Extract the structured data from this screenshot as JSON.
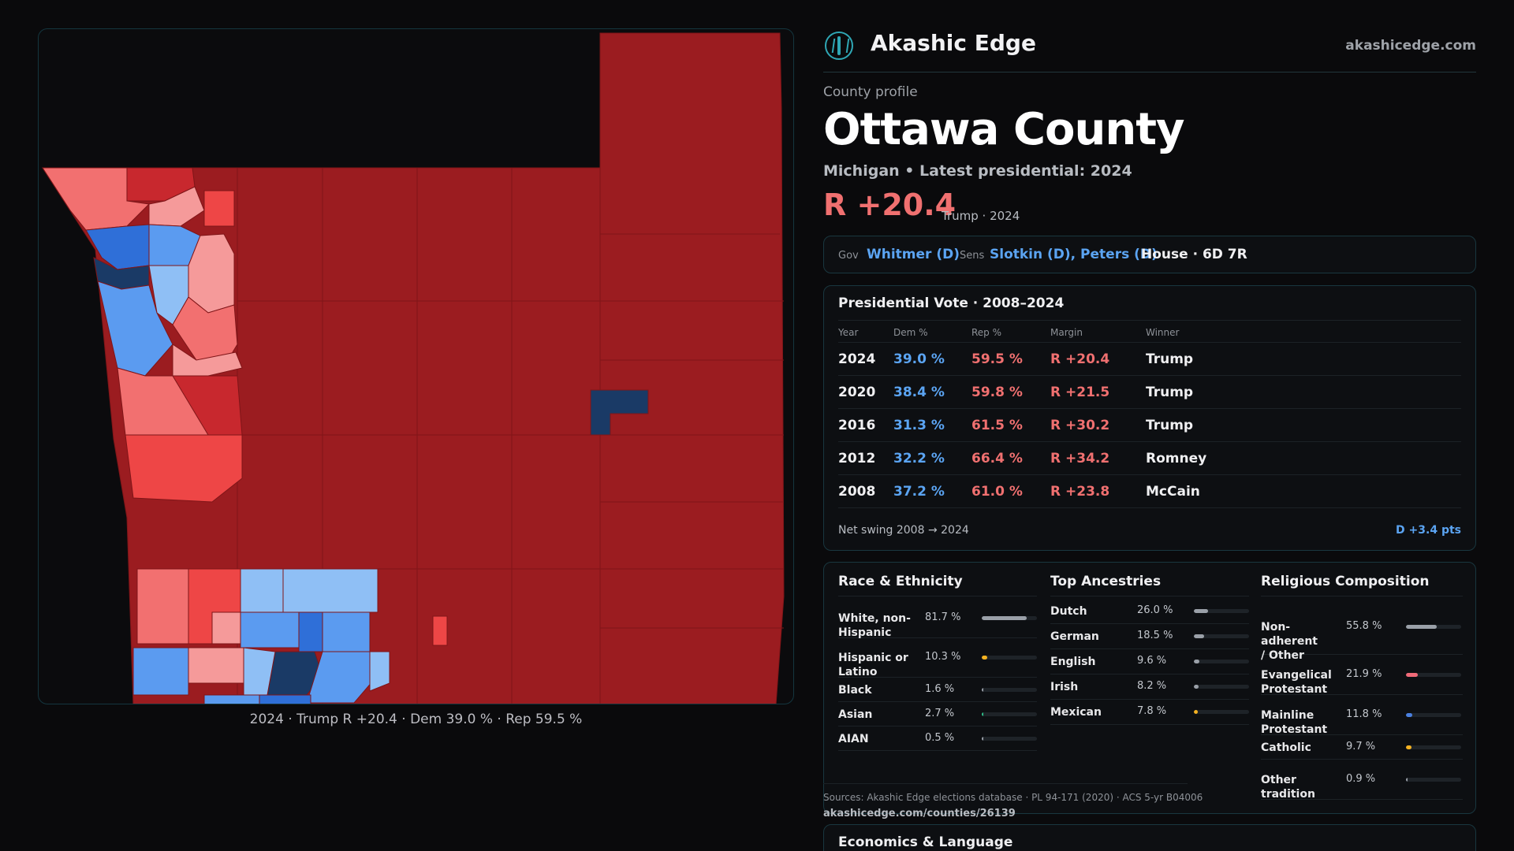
{
  "brand": {
    "name": "Akashic Edge",
    "url": "akashicedge.com"
  },
  "profile": {
    "label": "County profile",
    "county": "Ottawa County",
    "state_line": "Michigan • Latest presidential: 2024",
    "margin": "R +20.4",
    "margin_note": "Trump · 2024"
  },
  "officials": {
    "gov_label": "Gov",
    "gov": "Whitmer (D)",
    "sens_label": "Sens",
    "sens": "Slotkin (D), Peters (D)",
    "house": "House · 6D 7R"
  },
  "presidential": {
    "title": "Presidential Vote · 2008–2024",
    "columns": [
      "Year",
      "Dem %",
      "Rep %",
      "Margin",
      "Winner"
    ],
    "rows": [
      {
        "year": "2024",
        "dem": "39.0 %",
        "rep": "59.5 %",
        "margin": "R +20.4",
        "winner": "Trump"
      },
      {
        "year": "2020",
        "dem": "38.4 %",
        "rep": "59.8 %",
        "margin": "R +21.5",
        "winner": "Trump"
      },
      {
        "year": "2016",
        "dem": "31.3 %",
        "rep": "61.5 %",
        "margin": "R +30.2",
        "winner": "Trump"
      },
      {
        "year": "2012",
        "dem": "32.2 %",
        "rep": "66.4 %",
        "margin": "R +34.2",
        "winner": "Romney"
      },
      {
        "year": "2008",
        "dem": "37.2 %",
        "rep": "61.0 %",
        "margin": "R +23.8",
        "winner": "McCain"
      }
    ],
    "swing_label": "Net swing 2008 → 2024",
    "swing_value": "D +3.4 pts"
  },
  "demographics": {
    "race": {
      "title": "Race & Ethnicity",
      "rows": [
        {
          "label": "White, non-Hispanic",
          "value": "81.7 %",
          "share": 0.817,
          "color": "#9aa0a8"
        },
        {
          "label": "Hispanic or Latino",
          "value": "10.3 %",
          "share": 0.103,
          "color": "#f5b221"
        },
        {
          "label": "Black",
          "value": "1.6 %",
          "share": 0.016,
          "color": "#9aa0a8"
        },
        {
          "label": "Asian",
          "value": "2.7 %",
          "share": 0.027,
          "color": "#2fbf8a"
        },
        {
          "label": "AIAN",
          "value": "0.5 %",
          "share": 0.005,
          "color": "#9aa0a8"
        }
      ]
    },
    "ancestry": {
      "title": "Top Ancestries",
      "rows": [
        {
          "label": "Dutch",
          "value": "26.0 %",
          "share": 0.26,
          "color": "#9aa0a8"
        },
        {
          "label": "German",
          "value": "18.5 %",
          "share": 0.185,
          "color": "#9aa0a8"
        },
        {
          "label": "English",
          "value": "9.6 %",
          "share": 0.096,
          "color": "#9aa0a8"
        },
        {
          "label": "Irish",
          "value": "8.2 %",
          "share": 0.082,
          "color": "#9aa0a8"
        },
        {
          "label": "Mexican",
          "value": "7.8 %",
          "share": 0.078,
          "color": "#f5b221"
        }
      ]
    },
    "religion": {
      "title": "Religious Composition",
      "rows": [
        {
          "label": "Non-adherent / Other",
          "value": "55.8 %",
          "share": 0.558,
          "color": "#9aa0a8"
        },
        {
          "label": "Evangelical Protestant",
          "value": "21.9 %",
          "share": 0.219,
          "color": "#f06a78"
        },
        {
          "label": "Mainline Protestant",
          "value": "11.8 %",
          "share": 0.118,
          "color": "#4a80e0"
        },
        {
          "label": "Catholic",
          "value": "9.7 %",
          "share": 0.097,
          "color": "#f5b221"
        },
        {
          "label": "Other tradition",
          "value": "0.9 %",
          "share": 0.009,
          "color": "#9aa0a8"
        }
      ]
    }
  },
  "sources": {
    "text": "Sources: Akashic Edge elections database · PL 94-171 (2020) · ACS 5-yr B04006",
    "url": "akashicedge.com/counties/26139"
  },
  "economics": {
    "title": "Economics & Language"
  },
  "map": {
    "caption": "2024 · Trump R +20.4 · Dem 39.0 % · Rep 59.5 %",
    "palette": {
      "solid_r": "#9b1c20",
      "likely_r": "#c8282e",
      "lean_r": "#ee4646",
      "tilt_r": "#f27070",
      "light_r": "#f59a9a",
      "light_d": "#8fbff5",
      "lean_d": "#5b9bf0",
      "likely_d": "#2f6fd8",
      "solid_d": "#1a3a66"
    }
  }
}
